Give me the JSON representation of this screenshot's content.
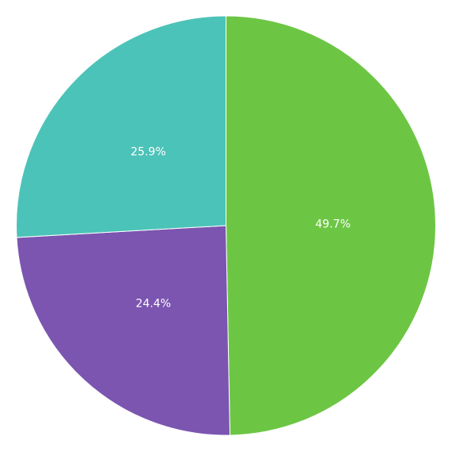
{
  "chart_data": {
    "type": "pie",
    "values": [
      49.7,
      24.4,
      25.9
    ],
    "value_labels": [
      "49.7%",
      "24.4%",
      "25.9%"
    ],
    "colors": [
      "#6cc644",
      "#7b55b0",
      "#4cc3b8"
    ]
  }
}
